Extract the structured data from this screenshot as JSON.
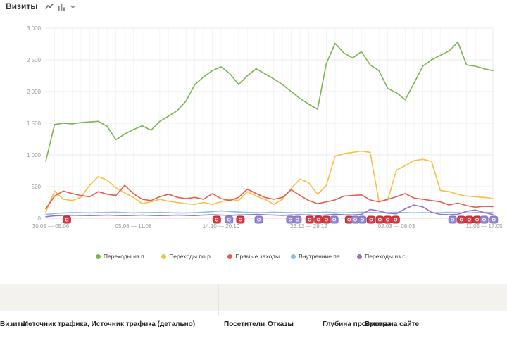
{
  "header": {
    "title": "Визиты",
    "icons": [
      "line-chart-icon",
      "bar-chart-icon",
      "chevron-down-icon"
    ]
  },
  "chart_data": {
    "type": "line",
    "title": "Визиты",
    "ylim": [
      0,
      3000
    ],
    "y_ticks": [
      "3 000",
      "2 500",
      "2 000",
      "1 500",
      "1 000",
      "500",
      "0"
    ],
    "grid": true,
    "legend_position": "bottom",
    "x_labels": [
      "30.05 — 05.06",
      "05.08 — 11.08",
      "14.10 — 20.10",
      "23.12 — 29.12",
      "02.03 — 08.03",
      "11.05 — 17.05"
    ],
    "x_label_indices": [
      0,
      10,
      20,
      30,
      40,
      50
    ],
    "series": [
      {
        "name": "Переходы из п…",
        "color": "#7cb450",
        "values": [
          900,
          1480,
          1500,
          1490,
          1510,
          1520,
          1530,
          1450,
          1240,
          1330,
          1400,
          1460,
          1390,
          1530,
          1610,
          1700,
          1850,
          2110,
          2230,
          2330,
          2390,
          2280,
          2110,
          2250,
          2360,
          2280,
          2200,
          2110,
          2000,
          1890,
          1800,
          1720,
          2440,
          2760,
          2610,
          2530,
          2630,
          2420,
          2330,
          2050,
          1980,
          1870,
          2130,
          2400,
          2500,
          2570,
          2640,
          2780,
          2420,
          2400,
          2360,
          2330
        ]
      },
      {
        "name": "Переходы по р…",
        "color": "#f5c044",
        "values": [
          100,
          430,
          300,
          280,
          330,
          520,
          660,
          600,
          480,
          400,
          330,
          230,
          260,
          300,
          270,
          250,
          230,
          220,
          250,
          220,
          260,
          300,
          280,
          420,
          350,
          300,
          220,
          300,
          470,
          620,
          560,
          380,
          520,
          980,
          1020,
          1040,
          1060,
          1040,
          270,
          290,
          760,
          830,
          910,
          930,
          900,
          440,
          420,
          380,
          350,
          340,
          330,
          310
        ]
      },
      {
        "name": "Прямые заходы",
        "color": "#e85c50",
        "values": [
          150,
          350,
          430,
          390,
          360,
          340,
          420,
          380,
          360,
          520,
          390,
          300,
          280,
          340,
          380,
          330,
          310,
          330,
          300,
          390,
          310,
          280,
          330,
          460,
          390,
          330,
          300,
          330,
          450,
          360,
          280,
          230,
          260,
          290,
          350,
          360,
          370,
          290,
          260,
          300,
          340,
          390,
          320,
          300,
          280,
          260,
          210,
          240,
          200,
          175,
          190,
          185
        ]
      },
      {
        "name": "Внутренние пе…",
        "color": "#84c2e9",
        "values": [
          60,
          75,
          85,
          90,
          88,
          85,
          90,
          92,
          95,
          90,
          85,
          88,
          90,
          92,
          88,
          85,
          82,
          88,
          95,
          105,
          115,
          108,
          98,
          92,
          88,
          90,
          95,
          92,
          88,
          85,
          88,
          92,
          95,
          90,
          86,
          90,
          95,
          92,
          88,
          90,
          94,
          90,
          86,
          90,
          86,
          90,
          94,
          90,
          86,
          90,
          94,
          90
        ]
      },
      {
        "name": "Переходы из с…",
        "color": "#9a70c8",
        "values": [
          25,
          40,
          45,
          48,
          45,
          42,
          45,
          50,
          46,
          42,
          46,
          50,
          46,
          42,
          46,
          50,
          46,
          42,
          50,
          54,
          50,
          46,
          52,
          56,
          60,
          55,
          50,
          46,
          52,
          56,
          52,
          46,
          52,
          62,
          56,
          52,
          60,
          140,
          115,
          80,
          70,
          150,
          210,
          180,
          95,
          60,
          56,
          62,
          110,
          130,
          90,
          58
        ]
      }
    ],
    "markers": {
      "red_positions": [
        2.4,
        19.5,
        22.2,
        30.1,
        31.1,
        32.0,
        34.6,
        37.1,
        38.1,
        39.0,
        39.9,
        47.4,
        48.3,
        49.2
      ],
      "purple_positions": [
        20.9,
        24.3,
        27.9,
        28.7,
        32.9,
        35.3,
        36.1,
        46.4,
        50.0,
        51.1
      ],
      "red_color": "#d93a42",
      "purple_color": "#9488cf"
    }
  },
  "table": {
    "group_header": "Источник трафика, Источник трафика (детально)",
    "columns": [
      {
        "label": "Визиты",
        "sort": "caret-down"
      },
      {
        "label": "Посетители",
        "sort": ""
      },
      {
        "label": "Отказы",
        "sort": ""
      },
      {
        "label": "Глубина просмотра",
        "sort": ""
      },
      {
        "label": "Время на сайте",
        "sort": ""
      }
    ]
  }
}
